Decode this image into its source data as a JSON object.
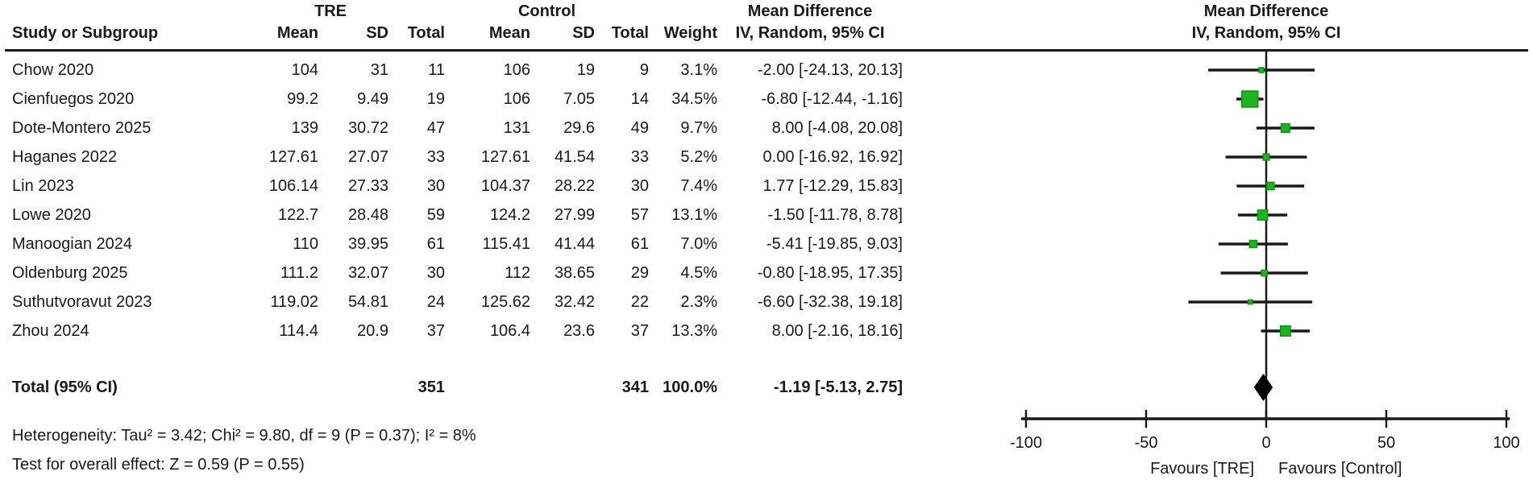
{
  "chart_data": {
    "type": "forest",
    "treatment_group": "TRE",
    "control_group": "Control",
    "effect_header": "Mean Difference",
    "method_header": "IV, Random, 95% CI",
    "study_column_header": "Study or Subgroup",
    "subheaders": {
      "mean": "Mean",
      "sd": "SD",
      "total": "Total",
      "weight": "Weight"
    },
    "axis": {
      "min": -100,
      "max": 100,
      "ticks": [
        -100,
        -50,
        0,
        50,
        100
      ]
    },
    "favours_left": "Favours [TRE]",
    "favours_right": "Favours [Control]",
    "studies": [
      {
        "label": "Chow 2020",
        "mean1": "104",
        "sd1": "31",
        "n1": "11",
        "mean2": "106",
        "sd2": "19",
        "n2": "9",
        "weight": "3.1%",
        "ci_text": "-2.00 [-24.13, 20.13]",
        "est": -2.0,
        "lo": -24.13,
        "hi": 20.13
      },
      {
        "label": "Cienfuegos 2020",
        "mean1": "99.2",
        "sd1": "9.49",
        "n1": "19",
        "mean2": "106",
        "sd2": "7.05",
        "n2": "14",
        "weight": "34.5%",
        "ci_text": "-6.80 [-12.44, -1.16]",
        "est": -6.8,
        "lo": -12.44,
        "hi": -1.16
      },
      {
        "label": "Dote-Montero 2025",
        "mean1": "139",
        "sd1": "30.72",
        "n1": "47",
        "mean2": "131",
        "sd2": "29.6",
        "n2": "49",
        "weight": "9.7%",
        "ci_text": "8.00 [-4.08, 20.08]",
        "est": 8.0,
        "lo": -4.08,
        "hi": 20.08
      },
      {
        "label": "Haganes 2022",
        "mean1": "127.61",
        "sd1": "27.07",
        "n1": "33",
        "mean2": "127.61",
        "sd2": "41.54",
        "n2": "33",
        "weight": "5.2%",
        "ci_text": "0.00 [-16.92, 16.92]",
        "est": 0.0,
        "lo": -16.92,
        "hi": 16.92
      },
      {
        "label": "Lin 2023",
        "mean1": "106.14",
        "sd1": "27.33",
        "n1": "30",
        "mean2": "104.37",
        "sd2": "28.22",
        "n2": "30",
        "weight": "7.4%",
        "ci_text": "1.77 [-12.29, 15.83]",
        "est": 1.77,
        "lo": -12.29,
        "hi": 15.83
      },
      {
        "label": "Lowe 2020",
        "mean1": "122.7",
        "sd1": "28.48",
        "n1": "59",
        "mean2": "124.2",
        "sd2": "27.99",
        "n2": "57",
        "weight": "13.1%",
        "ci_text": "-1.50 [-11.78, 8.78]",
        "est": -1.5,
        "lo": -11.78,
        "hi": 8.78
      },
      {
        "label": "Manoogian 2024",
        "mean1": "110",
        "sd1": "39.95",
        "n1": "61",
        "mean2": "115.41",
        "sd2": "41.44",
        "n2": "61",
        "weight": "7.0%",
        "ci_text": "-5.41 [-19.85, 9.03]",
        "est": -5.41,
        "lo": -19.85,
        "hi": 9.03
      },
      {
        "label": "Oldenburg 2025",
        "mean1": "111.2",
        "sd1": "32.07",
        "n1": "30",
        "mean2": "112",
        "sd2": "38.65",
        "n2": "29",
        "weight": "4.5%",
        "ci_text": "-0.80 [-18.95, 17.35]",
        "est": -0.8,
        "lo": -18.95,
        "hi": 17.35
      },
      {
        "label": "Suthutvoravut 2023",
        "mean1": "119.02",
        "sd1": "54.81",
        "n1": "24",
        "mean2": "125.62",
        "sd2": "32.42",
        "n2": "22",
        "weight": "2.3%",
        "ci_text": "-6.60 [-32.38, 19.18]",
        "est": -6.6,
        "lo": -32.38,
        "hi": 19.18
      },
      {
        "label": "Zhou 2024",
        "mean1": "114.4",
        "sd1": "20.9",
        "n1": "37",
        "mean2": "106.4",
        "sd2": "23.6",
        "n2": "37",
        "weight": "13.3%",
        "ci_text": "8.00 [-2.16, 18.16]",
        "est": 8.0,
        "lo": -2.16,
        "hi": 18.16
      }
    ],
    "total": {
      "label": "Total (95% CI)",
      "n1": "351",
      "n2": "341",
      "weight": "100.0%",
      "ci_text": "-1.19 [-5.13, 2.75]",
      "est": -1.19,
      "lo": -5.13,
      "hi": 2.75
    },
    "heterogeneity": "Heterogeneity: Tau² = 3.42; Chi² = 9.80, df = 9 (P = 0.37); I² = 8%",
    "overall_effect": "Test for overall effect: Z = 0.59 (P = 0.55)",
    "colors": {
      "square": "#1fb41f",
      "square_border": "#0f930f",
      "diamond": "#000000",
      "line": "#1a1a1a",
      "text": "#1a1a1a"
    }
  }
}
